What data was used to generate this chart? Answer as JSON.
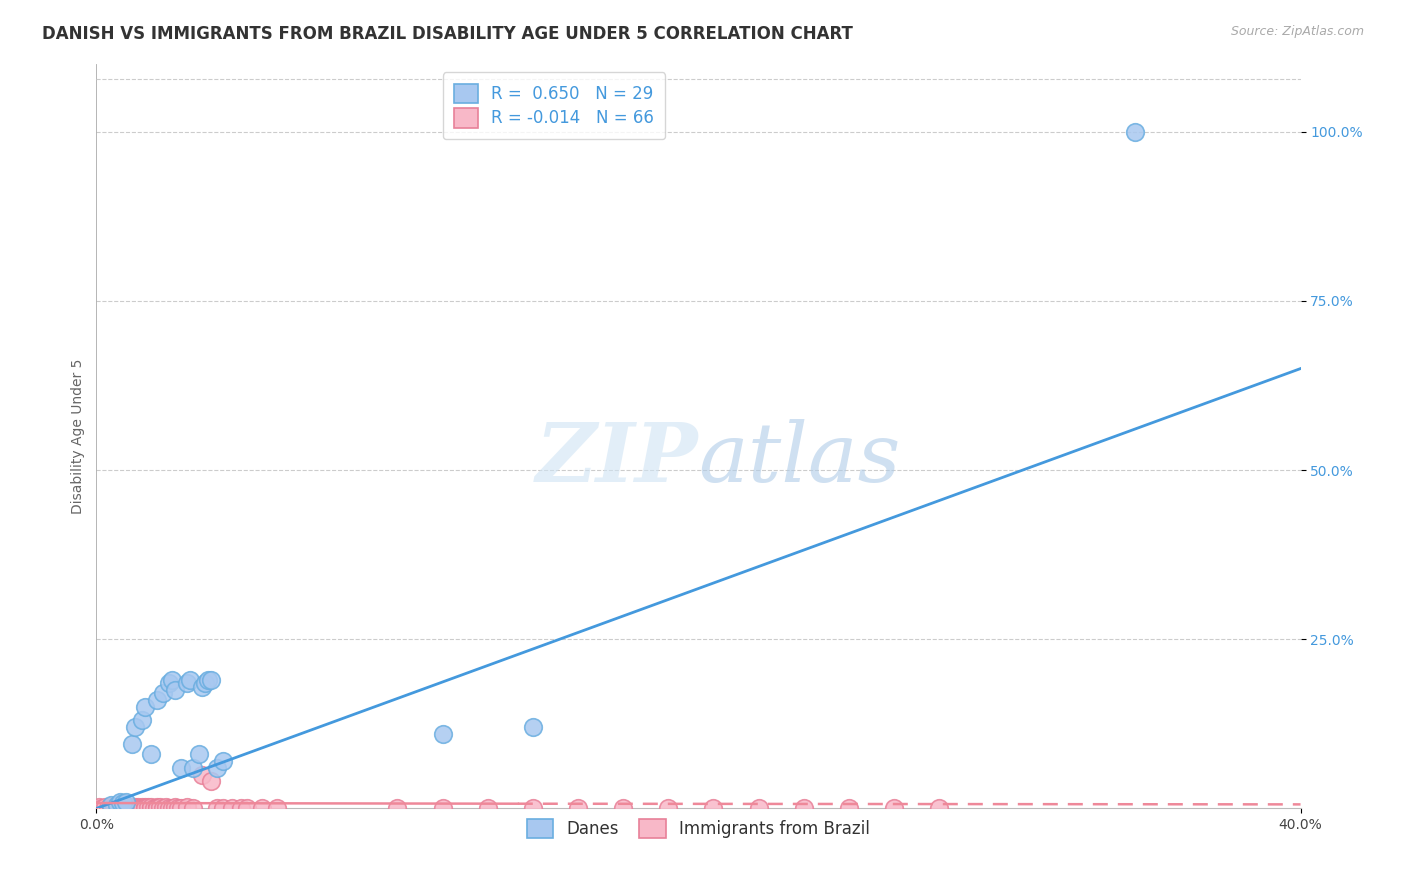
{
  "title": "DANISH VS IMMIGRANTS FROM BRAZIL DISABILITY AGE UNDER 5 CORRELATION CHART",
  "source": "Source: ZipAtlas.com",
  "ylabel": "Disability Age Under 5",
  "xlim": [
    0.0,
    0.4
  ],
  "ylim": [
    0.0,
    1.1
  ],
  "ytick_values": [
    0.25,
    0.5,
    0.75,
    1.0
  ],
  "ytick_labels": [
    "25.0%",
    "50.0%",
    "75.0%",
    "100.0%"
  ],
  "danes_color": "#a8c8f0",
  "danes_edge_color": "#6aaee0",
  "brazil_color": "#f8b8c8",
  "brazil_edge_color": "#e88098",
  "danes_R": 0.65,
  "danes_N": 29,
  "brazil_R": -0.014,
  "brazil_N": 66,
  "danes_scatter_x": [
    0.005,
    0.007,
    0.008,
    0.009,
    0.01,
    0.012,
    0.013,
    0.015,
    0.016,
    0.018,
    0.02,
    0.022,
    0.024,
    0.025,
    0.026,
    0.028,
    0.03,
    0.031,
    0.032,
    0.034,
    0.035,
    0.036,
    0.037,
    0.038,
    0.04,
    0.042,
    0.115,
    0.145,
    0.345
  ],
  "danes_scatter_y": [
    0.005,
    0.005,
    0.01,
    0.008,
    0.01,
    0.095,
    0.12,
    0.13,
    0.15,
    0.08,
    0.16,
    0.17,
    0.185,
    0.19,
    0.175,
    0.06,
    0.185,
    0.19,
    0.06,
    0.08,
    0.18,
    0.185,
    0.19,
    0.19,
    0.06,
    0.07,
    0.11,
    0.12,
    1.0
  ],
  "brazil_scatter_x": [
    0.001,
    0.002,
    0.003,
    0.004,
    0.005,
    0.005,
    0.006,
    0.006,
    0.007,
    0.007,
    0.008,
    0.008,
    0.009,
    0.009,
    0.01,
    0.01,
    0.011,
    0.011,
    0.012,
    0.012,
    0.013,
    0.013,
    0.014,
    0.014,
    0.015,
    0.015,
    0.016,
    0.016,
    0.017,
    0.018,
    0.018,
    0.019,
    0.02,
    0.02,
    0.021,
    0.022,
    0.023,
    0.024,
    0.025,
    0.026,
    0.027,
    0.028,
    0.03,
    0.032,
    0.035,
    0.038,
    0.04,
    0.042,
    0.045,
    0.048,
    0.05,
    0.055,
    0.06,
    0.1,
    0.115,
    0.13,
    0.145,
    0.16,
    0.175,
    0.19,
    0.205,
    0.22,
    0.235,
    0.25,
    0.265,
    0.28
  ],
  "brazil_scatter_y": [
    0.002,
    0.001,
    0.002,
    0.001,
    0.002,
    0.001,
    0.002,
    0.001,
    0.002,
    0.001,
    0.002,
    0.001,
    0.002,
    0.001,
    0.002,
    0.001,
    0.002,
    0.001,
    0.002,
    0.001,
    0.002,
    0.001,
    0.002,
    0.001,
    0.002,
    0.001,
    0.002,
    0.001,
    0.002,
    0.001,
    0.002,
    0.001,
    0.002,
    0.001,
    0.002,
    0.001,
    0.002,
    0.001,
    0.001,
    0.002,
    0.001,
    0.001,
    0.002,
    0.001,
    0.05,
    0.04,
    0.001,
    0.001,
    0.001,
    0.001,
    0.001,
    0.001,
    0.001,
    0.001,
    0.001,
    0.001,
    0.001,
    0.001,
    0.001,
    0.001,
    0.001,
    0.001,
    0.001,
    0.001,
    0.001,
    0.001
  ],
  "danes_line_color": "#4499dd",
  "brazil_line_color": "#ee8899",
  "background_color": "#ffffff",
  "grid_color": "#cccccc",
  "title_fontsize": 12,
  "source_fontsize": 9,
  "axis_label_fontsize": 10,
  "tick_fontsize": 10,
  "legend_fontsize": 12
}
